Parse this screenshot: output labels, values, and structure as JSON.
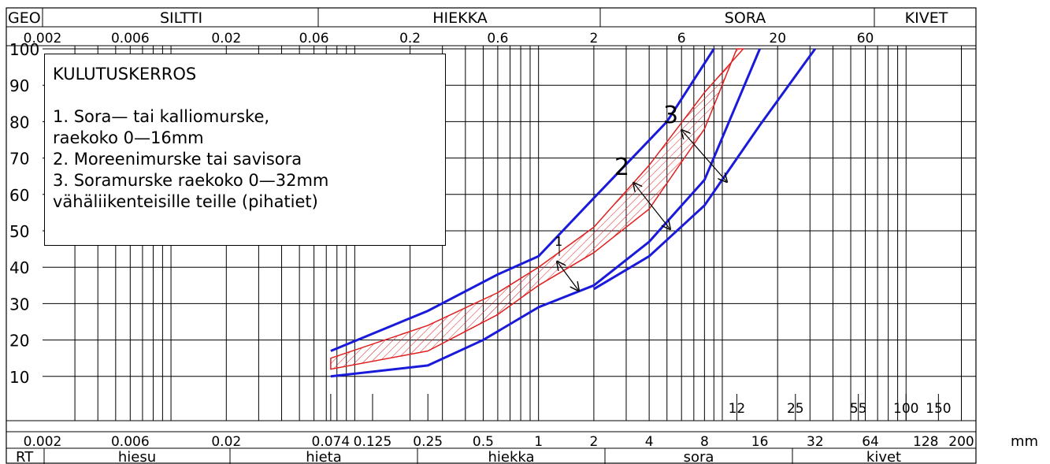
{
  "top_bands": {
    "geo": "GEO",
    "siltti": "SILTTI",
    "hiekka": "HIEKKA",
    "sora": "SORA",
    "kivet": "KIVET"
  },
  "top_ticks": [
    "0.002",
    "0.006",
    "0.02",
    "0.06",
    "0.2",
    "0.6",
    "2",
    "6",
    "20",
    "60"
  ],
  "y_ticks": [
    "100",
    "90",
    "80",
    "70",
    "60",
    "50",
    "40",
    "30",
    "20",
    "10"
  ],
  "bottom_ticks": [
    "0.002",
    "0.006",
    "0.02",
    "0.074",
    "0.125",
    "0.25",
    "0.5",
    "1",
    "2",
    "4",
    "8",
    "16",
    "32",
    "64",
    "128",
    "200"
  ],
  "bottom_unit": "mm",
  "upper_ticks": [
    "12",
    "25",
    "55",
    "100",
    "150"
  ],
  "bottom_bands": {
    "rt": "RT",
    "hiesu": "hiesu",
    "hieta": "hieta",
    "hiekka": "hiekka",
    "sora": "sora",
    "kivet": "kivet"
  },
  "legend": {
    "title": "KULUTUSKERROS",
    "line1": "1. Sora— tai kalliomurske,",
    "line2": "raekoko 0—16mm",
    "line3": "2. Moreenimurske tai savisora",
    "line4": "3. Soramurske raekoko 0—32mm",
    "line5": "vähäliikenteisille teille (pihatiet)"
  },
  "curve_labels": {
    "c1": "1",
    "c2": "2",
    "c3": "3"
  },
  "colors": {
    "envelope": "#1a1adb",
    "band": "#e02020"
  },
  "chart_data": {
    "type": "line",
    "x_scale": "log",
    "xlabel": "mm",
    "ylabel": "",
    "ylim": [
      0,
      100
    ],
    "xlim": [
      0.002,
      200
    ],
    "series": [
      {
        "x": [
          0.074,
          0.25,
          0.6,
          1.0,
          2.0,
          5.0,
          9.0
        ],
        "y": [
          17,
          28,
          38,
          43,
          59,
          80,
          100
        ]
      },
      {
        "x": [
          0.074,
          0.25,
          0.5,
          1.0,
          2.0,
          4.0,
          8.0,
          16.0
        ],
        "y": [
          10,
          13,
          20,
          29,
          35,
          47,
          64,
          100
        ]
      },
      {
        "x": [
          2.0,
          4.0,
          8.0,
          16.0,
          32.0
        ],
        "y": [
          34,
          43,
          57,
          79,
          100
        ]
      },
      {
        "x": [
          0.074,
          0.25,
          0.6,
          1.0,
          2.0,
          4.0,
          8.0,
          13.0
        ],
        "y": [
          15,
          24,
          33,
          40,
          51,
          68,
          88,
          100
        ]
      },
      {
        "x": [
          0.074,
          0.25,
          0.6,
          1.0,
          2.0,
          4.0,
          8.0,
          12.0
        ],
        "y": [
          12,
          17,
          27,
          35,
          44,
          56,
          78,
          100
        ]
      }
    ]
  }
}
